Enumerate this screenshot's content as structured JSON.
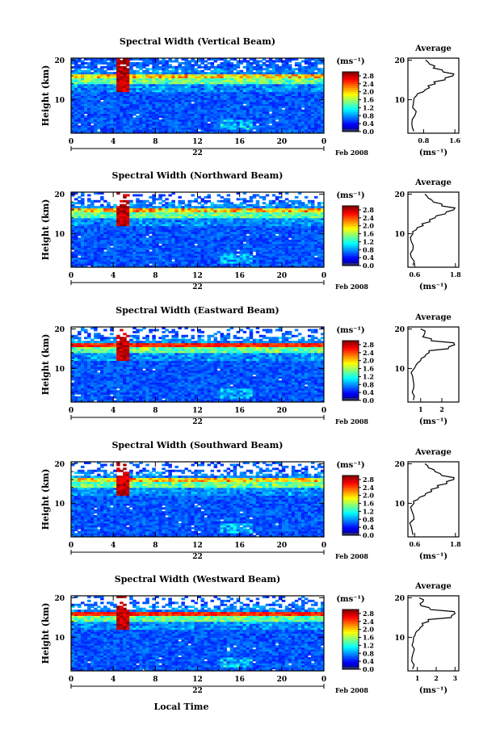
{
  "figure": {
    "xlabel": "Local Time",
    "x_ticks": [
      "0",
      "4",
      "8",
      "12",
      "16",
      "20",
      "0"
    ],
    "y_label": "Height (km)",
    "y_ticks": [
      "20",
      "10"
    ],
    "colorbar_unit": "(ms⁻¹)",
    "colorbar_ticks": [
      "2.8",
      "2.4",
      "2.0",
      "1.6",
      "1.2",
      "0.8",
      "0.4",
      "0.0"
    ],
    "month_label": "Feb 2008",
    "avg_title": "Average",
    "avg_unit": "(ms⁻¹)"
  },
  "chart_data": [
    {
      "type": "heatmap",
      "title": "Spectral Width (Vertical Beam)",
      "day": "22",
      "xlim": [
        0,
        24
      ],
      "ylim": [
        1.5,
        20.5
      ],
      "clim": [
        0,
        3.0
      ],
      "avg": {
        "type": "line",
        "title": "Average",
        "xlim": [
          0.4,
          1.7
        ],
        "xticks": [
          "0.8",
          "1.6"
        ],
        "profile": [
          [
            0.55,
            2
          ],
          [
            0.5,
            4
          ],
          [
            0.58,
            6
          ],
          [
            0.52,
            8
          ],
          [
            0.55,
            10
          ],
          [
            0.62,
            11
          ],
          [
            0.8,
            12
          ],
          [
            0.95,
            13
          ],
          [
            1.1,
            14
          ],
          [
            1.35,
            15
          ],
          [
            1.55,
            16
          ],
          [
            1.3,
            17
          ],
          [
            1.05,
            18
          ],
          [
            0.95,
            19
          ],
          [
            0.85,
            20
          ]
        ]
      }
    },
    {
      "type": "heatmap",
      "title": "Spectral Width (Northward Beam)",
      "day": "22",
      "xlim": [
        0,
        24
      ],
      "ylim": [
        1.5,
        20.5
      ],
      "clim": [
        0,
        3.0
      ],
      "avg": {
        "type": "line",
        "title": "Average",
        "xlim": [
          0.4,
          1.9
        ],
        "xticks": [
          "0.6",
          "1.8"
        ],
        "profile": [
          [
            0.55,
            2
          ],
          [
            0.5,
            4
          ],
          [
            0.55,
            6
          ],
          [
            0.5,
            8
          ],
          [
            0.55,
            10
          ],
          [
            0.65,
            11
          ],
          [
            0.85,
            12
          ],
          [
            1.05,
            13
          ],
          [
            1.2,
            14
          ],
          [
            1.5,
            15
          ],
          [
            1.75,
            16
          ],
          [
            1.4,
            17
          ],
          [
            1.15,
            18
          ],
          [
            1.0,
            19
          ],
          [
            0.9,
            20
          ]
        ]
      }
    },
    {
      "type": "heatmap",
      "title": "Spectral Width (Eastward Beam)",
      "day": "22",
      "xlim": [
        0,
        24
      ],
      "ylim": [
        1.5,
        20.5
      ],
      "clim": [
        0,
        3.0
      ],
      "avg": {
        "type": "line",
        "title": "Average",
        "xlim": [
          0.4,
          2.8
        ],
        "xticks": [
          "1",
          "2"
        ],
        "profile": [
          [
            0.65,
            2
          ],
          [
            0.6,
            4
          ],
          [
            0.68,
            6
          ],
          [
            0.62,
            8
          ],
          [
            0.7,
            10
          ],
          [
            0.8,
            11
          ],
          [
            1.0,
            12
          ],
          [
            1.2,
            13
          ],
          [
            1.4,
            14
          ],
          [
            2.3,
            15
          ],
          [
            2.6,
            16
          ],
          [
            1.5,
            17
          ],
          [
            1.1,
            18
          ],
          [
            1.2,
            19
          ],
          [
            1.0,
            20
          ]
        ]
      }
    },
    {
      "type": "heatmap",
      "title": "Spectral Width (Southward Beam)",
      "day": "22",
      "xlim": [
        0,
        24
      ],
      "ylim": [
        1.5,
        20.5
      ],
      "clim": [
        0,
        3.0
      ],
      "avg": {
        "type": "line",
        "title": "Average",
        "xlim": [
          0.4,
          1.9
        ],
        "xticks": [
          "0.6",
          "1.8"
        ],
        "profile": [
          [
            0.55,
            2
          ],
          [
            0.5,
            4
          ],
          [
            0.58,
            6
          ],
          [
            0.52,
            8
          ],
          [
            0.58,
            10
          ],
          [
            0.7,
            11
          ],
          [
            0.9,
            12
          ],
          [
            1.1,
            13
          ],
          [
            1.3,
            14
          ],
          [
            1.55,
            15
          ],
          [
            1.75,
            16
          ],
          [
            1.4,
            17
          ],
          [
            1.2,
            18
          ],
          [
            1.0,
            19
          ],
          [
            0.9,
            20
          ]
        ]
      }
    },
    {
      "type": "heatmap",
      "title": "Spectral Width (Westward Beam)",
      "day": "22",
      "xlim": [
        0,
        24
      ],
      "ylim": [
        1.5,
        20.5
      ],
      "clim": [
        0,
        3.0
      ],
      "avg": {
        "type": "line",
        "title": "Average",
        "xlim": [
          0.5,
          3.2
        ],
        "xticks": [
          "1",
          "2",
          "3"
        ],
        "profile": [
          [
            0.75,
            2
          ],
          [
            0.7,
            4
          ],
          [
            0.78,
            6
          ],
          [
            0.72,
            8
          ],
          [
            0.8,
            10
          ],
          [
            0.9,
            11
          ],
          [
            1.1,
            12
          ],
          [
            1.3,
            13
          ],
          [
            1.6,
            14
          ],
          [
            2.8,
            15
          ],
          [
            3.0,
            16
          ],
          [
            1.7,
            17
          ],
          [
            1.2,
            18
          ],
          [
            1.3,
            19
          ],
          [
            1.1,
            20
          ]
        ]
      }
    }
  ]
}
